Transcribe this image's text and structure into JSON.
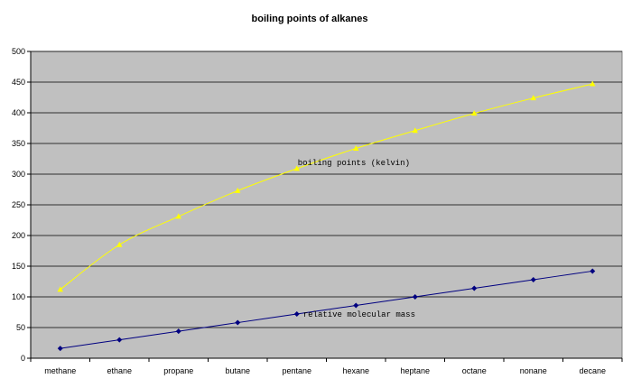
{
  "chart_data": {
    "type": "line",
    "title": "boiling points of alkanes",
    "xlabel": "",
    "ylabel": "",
    "ylim": [
      0,
      500
    ],
    "yticks": [
      0,
      50,
      100,
      150,
      200,
      250,
      300,
      350,
      400,
      450,
      500
    ],
    "grid": true,
    "plot_background": "#c0c0c0",
    "categories": [
      "methane",
      "ethane",
      "propane",
      "butane",
      "pentane",
      "hexane",
      "heptane",
      "octane",
      "nonane",
      "decane"
    ],
    "series": [
      {
        "name": "boiling points (kelvin)",
        "values": [
          112,
          185,
          231,
          273,
          309,
          342,
          371,
          399,
          424,
          447
        ],
        "color": "#ffff00",
        "marker": "triangle"
      },
      {
        "name": "relative molecular mass",
        "values": [
          16,
          30,
          44,
          58,
          72,
          86,
          100,
          114,
          128,
          142
        ],
        "color": "#000080",
        "marker": "diamond"
      }
    ]
  }
}
